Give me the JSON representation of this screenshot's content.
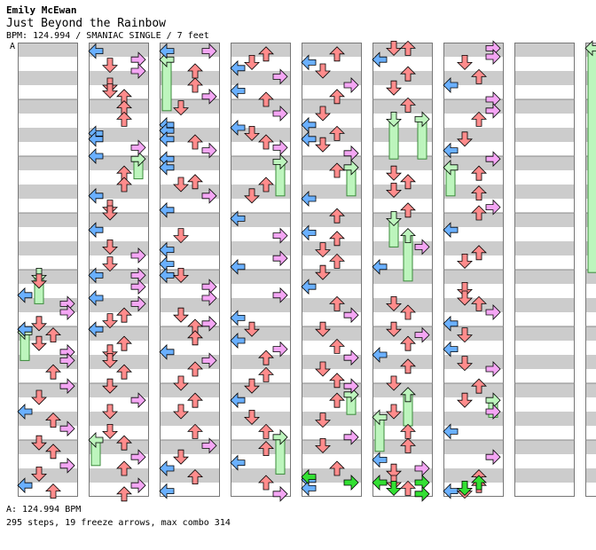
{
  "header": {
    "author": "Emily McEwan",
    "title": "Just Beyond the Rainbow",
    "subtitle": "BPM: 124.994 / SMANIAC SINGLE / 7 feet",
    "marker": "A"
  },
  "footer": {
    "bpm_line": "A: 124.994 BPM",
    "stats_line": "295 steps, 19 freeze arrows, max combo 314"
  },
  "colors": {
    "left": "#6ab0ff",
    "down": "#ff8c8c",
    "up": "#ff8c8c",
    "right": "#f4a6f4",
    "green": "#33e033",
    "freeze": "#bdf5bd",
    "stripe": "#cccccc"
  },
  "chart_data": {
    "type": "table",
    "columns": 9,
    "measures_per_column": 8,
    "lanes": [
      "left",
      "down",
      "up",
      "right"
    ],
    "notes": [
      [
        [
          0,
          4.2,
          1
        ],
        [
          0,
          4.45,
          0
        ],
        [
          0,
          4.6,
          3
        ],
        [
          0,
          4.75,
          3
        ],
        [
          0,
          4.95,
          1
        ],
        [
          0,
          5.05,
          0
        ],
        [
          0,
          5.15,
          2
        ],
        [
          0,
          5.3,
          1
        ],
        [
          0,
          5.45,
          3
        ],
        [
          0,
          5.6,
          3
        ],
        [
          0,
          5.8,
          2
        ],
        [
          0,
          6.05,
          3
        ],
        [
          0,
          6.25,
          1
        ],
        [
          0,
          6.5,
          0
        ],
        [
          0,
          6.65,
          2
        ],
        [
          0,
          6.8,
          3
        ],
        [
          0,
          7.05,
          1
        ],
        [
          0,
          7.2,
          2
        ],
        [
          0,
          7.45,
          3
        ],
        [
          0,
          7.6,
          1
        ],
        [
          0,
          7.8,
          0
        ],
        [
          0,
          7.9,
          2
        ]
      ],
      [
        [
          1,
          0.15,
          0
        ],
        [
          1,
          0.3,
          3
        ],
        [
          1,
          0.5,
          3
        ],
        [
          1,
          0.4,
          1
        ],
        [
          1,
          0.75,
          1
        ],
        [
          1,
          0.85,
          1
        ],
        [
          1,
          0.95,
          2
        ],
        [
          1,
          1.15,
          2
        ],
        [
          1,
          1.35,
          2
        ],
        [
          1,
          1.6,
          0
        ],
        [
          1,
          1.7,
          0
        ],
        [
          1,
          1.85,
          3
        ],
        [
          1,
          2.0,
          0
        ],
        [
          1,
          2.3,
          2
        ],
        [
          1,
          2.5,
          2
        ],
        [
          1,
          2.7,
          0
        ],
        [
          1,
          2.9,
          1
        ],
        [
          1,
          3.0,
          1
        ],
        [
          1,
          3.3,
          0
        ],
        [
          1,
          3.6,
          1
        ],
        [
          1,
          3.75,
          3
        ],
        [
          1,
          3.9,
          1
        ],
        [
          1,
          4.1,
          3
        ],
        [
          1,
          4.1,
          0
        ],
        [
          1,
          4.3,
          3
        ],
        [
          1,
          4.5,
          0
        ],
        [
          1,
          4.6,
          3
        ],
        [
          1,
          4.8,
          2
        ],
        [
          1,
          4.9,
          1
        ],
        [
          1,
          5.05,
          0
        ],
        [
          1,
          5.3,
          2
        ],
        [
          1,
          5.45,
          1
        ],
        [
          1,
          5.6,
          1
        ],
        [
          1,
          5.8,
          2
        ],
        [
          1,
          6.05,
          1
        ],
        [
          1,
          6.3,
          3
        ],
        [
          1,
          6.5,
          1
        ],
        [
          1,
          6.85,
          1
        ],
        [
          1,
          7.05,
          2
        ],
        [
          1,
          7.3,
          3
        ],
        [
          1,
          7.5,
          2
        ],
        [
          1,
          7.8,
          3
        ],
        [
          1,
          7.95,
          2
        ]
      ],
      [
        [
          2,
          0.15,
          0
        ],
        [
          2,
          0.15,
          3
        ],
        [
          2,
          0.5,
          2
        ],
        [
          2,
          0.75,
          2
        ],
        [
          2,
          0.95,
          3
        ],
        [
          2,
          1.15,
          1
        ],
        [
          2,
          1.45,
          0
        ],
        [
          2,
          1.55,
          0
        ],
        [
          2,
          1.7,
          0
        ],
        [
          2,
          1.75,
          2
        ],
        [
          2,
          1.9,
          3
        ],
        [
          2,
          2.05,
          0
        ],
        [
          2,
          2.2,
          0
        ],
        [
          2,
          2.45,
          2
        ],
        [
          2,
          2.5,
          1
        ],
        [
          2,
          2.7,
          3
        ],
        [
          2,
          2.95,
          0
        ],
        [
          2,
          3.4,
          1
        ],
        [
          2,
          3.65,
          0
        ],
        [
          2,
          3.9,
          0
        ],
        [
          2,
          4.1,
          0
        ],
        [
          2,
          4.1,
          1
        ],
        [
          2,
          4.3,
          3
        ],
        [
          2,
          4.5,
          3
        ],
        [
          2,
          4.8,
          1
        ],
        [
          2,
          4.95,
          3
        ],
        [
          2,
          5.0,
          2
        ],
        [
          2,
          5.2,
          2
        ],
        [
          2,
          5.45,
          0
        ],
        [
          2,
          5.6,
          3
        ],
        [
          2,
          5.75,
          2
        ],
        [
          2,
          6.0,
          1
        ],
        [
          2,
          6.3,
          2
        ],
        [
          2,
          6.5,
          1
        ],
        [
          2,
          6.85,
          2
        ],
        [
          2,
          7.1,
          3
        ],
        [
          2,
          7.3,
          1
        ],
        [
          2,
          7.5,
          0
        ],
        [
          2,
          7.65,
          2
        ],
        [
          2,
          7.9,
          0
        ]
      ],
      [
        [
          3,
          0.2,
          2
        ],
        [
          3,
          0.35,
          1
        ],
        [
          3,
          0.45,
          0
        ],
        [
          3,
          0.6,
          3
        ],
        [
          3,
          0.85,
          0
        ],
        [
          3,
          1.0,
          2
        ],
        [
          3,
          1.25,
          3
        ],
        [
          3,
          1.5,
          0
        ],
        [
          3,
          1.6,
          1
        ],
        [
          3,
          1.75,
          2
        ],
        [
          3,
          1.85,
          3
        ],
        [
          3,
          2.5,
          2
        ],
        [
          3,
          2.7,
          1
        ],
        [
          3,
          3.1,
          0
        ],
        [
          3,
          3.4,
          3
        ],
        [
          3,
          3.8,
          3
        ],
        [
          3,
          3.95,
          0
        ],
        [
          3,
          4.45,
          3
        ],
        [
          3,
          4.85,
          0
        ],
        [
          3,
          5.05,
          1
        ],
        [
          3,
          5.25,
          0
        ],
        [
          3,
          5.4,
          3
        ],
        [
          3,
          5.55,
          2
        ],
        [
          3,
          5.85,
          2
        ],
        [
          3,
          6.05,
          1
        ],
        [
          3,
          6.3,
          0
        ],
        [
          3,
          6.6,
          1
        ],
        [
          3,
          6.85,
          2
        ],
        [
          3,
          7.15,
          2
        ],
        [
          3,
          7.4,
          0
        ],
        [
          3,
          7.75,
          2
        ],
        [
          3,
          7.95,
          3
        ]
      ],
      [
        [
          4,
          0.2,
          2
        ],
        [
          4,
          0.35,
          0
        ],
        [
          4,
          0.5,
          1
        ],
        [
          4,
          0.75,
          3
        ],
        [
          4,
          0.95,
          2
        ],
        [
          4,
          1.25,
          1
        ],
        [
          4,
          1.45,
          0
        ],
        [
          4,
          1.6,
          2
        ],
        [
          4,
          1.7,
          0
        ],
        [
          4,
          1.8,
          1
        ],
        [
          4,
          1.95,
          3
        ],
        [
          4,
          2.25,
          2
        ],
        [
          4,
          2.75,
          0
        ],
        [
          4,
          3.05,
          2
        ],
        [
          4,
          3.35,
          0
        ],
        [
          4,
          3.45,
          2
        ],
        [
          4,
          3.65,
          1
        ],
        [
          4,
          3.85,
          2
        ],
        [
          4,
          4.05,
          1
        ],
        [
          4,
          4.3,
          0
        ],
        [
          4,
          4.6,
          2
        ],
        [
          4,
          4.8,
          3
        ],
        [
          4,
          5.05,
          1
        ],
        [
          4,
          5.35,
          2
        ],
        [
          4,
          5.55,
          3
        ],
        [
          4,
          5.75,
          1
        ],
        [
          4,
          5.95,
          2
        ],
        [
          4,
          6.05,
          3
        ],
        [
          4,
          6.3,
          2
        ],
        [
          4,
          6.65,
          1
        ],
        [
          4,
          6.95,
          3
        ],
        [
          4,
          7.1,
          1
        ],
        [
          4,
          7.5,
          2
        ],
        [
          4,
          7.7,
          0
        ],
        [
          4,
          7.85,
          0
        ]
      ],
      [
        [
          5,
          0.1,
          1
        ],
        [
          5,
          0.1,
          2
        ],
        [
          5,
          0.3,
          0
        ],
        [
          5,
          0.55,
          2
        ],
        [
          5,
          0.8,
          1
        ],
        [
          5,
          1.1,
          2
        ],
        [
          5,
          2.3,
          1
        ],
        [
          5,
          2.45,
          2
        ],
        [
          5,
          2.6,
          1
        ],
        [
          5,
          2.95,
          2
        ],
        [
          5,
          3.6,
          3
        ],
        [
          5,
          3.95,
          0
        ],
        [
          5,
          4.6,
          1
        ],
        [
          5,
          4.75,
          2
        ],
        [
          5,
          5.05,
          1
        ],
        [
          5,
          5.15,
          3
        ],
        [
          5,
          5.3,
          2
        ],
        [
          5,
          5.5,
          0
        ],
        [
          5,
          5.7,
          2
        ],
        [
          5,
          6.0,
          1
        ],
        [
          5,
          6.5,
          1
        ],
        [
          5,
          6.85,
          2
        ],
        [
          5,
          7.1,
          2
        ],
        [
          5,
          7.35,
          0
        ],
        [
          5,
          7.5,
          3
        ],
        [
          5,
          7.55,
          1
        ],
        [
          5,
          7.75,
          1
        ],
        [
          5,
          7.85,
          2
        ]
      ],
      [
        [
          6,
          0.1,
          3
        ],
        [
          6,
          0.25,
          3
        ],
        [
          6,
          0.35,
          1
        ],
        [
          6,
          0.6,
          2
        ],
        [
          6,
          0.75,
          0
        ],
        [
          6,
          1.0,
          3
        ],
        [
          6,
          1.2,
          3
        ],
        [
          6,
          1.35,
          2
        ],
        [
          6,
          1.7,
          1
        ],
        [
          6,
          1.9,
          0
        ],
        [
          6,
          2.05,
          3
        ],
        [
          6,
          2.3,
          2
        ],
        [
          6,
          2.65,
          2
        ],
        [
          6,
          2.9,
          3
        ],
        [
          6,
          3.0,
          2
        ],
        [
          6,
          3.3,
          0
        ],
        [
          6,
          3.7,
          2
        ],
        [
          6,
          3.85,
          1
        ],
        [
          6,
          4.35,
          1
        ],
        [
          6,
          4.5,
          1
        ],
        [
          6,
          4.6,
          2
        ],
        [
          6,
          4.75,
          3
        ],
        [
          6,
          4.95,
          0
        ],
        [
          6,
          5.15,
          1
        ],
        [
          6,
          5.4,
          0
        ],
        [
          6,
          5.65,
          1
        ],
        [
          6,
          5.75,
          3
        ],
        [
          6,
          6.05,
          2
        ],
        [
          6,
          6.3,
          1
        ],
        [
          6,
          6.5,
          3
        ],
        [
          6,
          6.85,
          0
        ],
        [
          6,
          7.3,
          3
        ],
        [
          6,
          7.65,
          2
        ],
        [
          6,
          7.8,
          2
        ],
        [
          6,
          7.9,
          0
        ],
        [
          6,
          7.9,
          1
        ]
      ]
    ],
    "freezes": [
      [
        0,
        4.1,
        4.6,
        1
      ],
      [
        0,
        5.1,
        5.6,
        0
      ],
      [
        1,
        2.05,
        2.4,
        3
      ],
      [
        1,
        7.0,
        7.45,
        0
      ],
      [
        2,
        0.3,
        1.2,
        0
      ],
      [
        3,
        2.1,
        2.7,
        3
      ],
      [
        3,
        6.95,
        7.6,
        3
      ],
      [
        4,
        2.2,
        2.7,
        3
      ],
      [
        4,
        6.2,
        6.55,
        3
      ],
      [
        5,
        1.35,
        2.05,
        1
      ],
      [
        5,
        1.35,
        2.05,
        3
      ],
      [
        5,
        3.1,
        3.6,
        1
      ],
      [
        5,
        3.4,
        4.2,
        2
      ],
      [
        5,
        6.2,
        6.75,
        2
      ],
      [
        5,
        6.6,
        7.2,
        0
      ],
      [
        6,
        2.2,
        2.7,
        0
      ],
      [
        6,
        6.3,
        6.6,
        3
      ],
      [
        8,
        0.1,
        4.05,
        0
      ],
      [
        8,
        0.1,
        4.05,
        3
      ]
    ],
    "green_notes": [
      [
        4,
        7.65,
        0
      ],
      [
        4,
        7.75,
        3
      ],
      [
        5,
        7.75,
        0
      ],
      [
        5,
        7.85,
        1
      ],
      [
        5,
        7.75,
        3
      ],
      [
        5,
        7.95,
        3
      ],
      [
        6,
        7.85,
        1
      ],
      [
        6,
        7.75,
        2
      ]
    ]
  }
}
